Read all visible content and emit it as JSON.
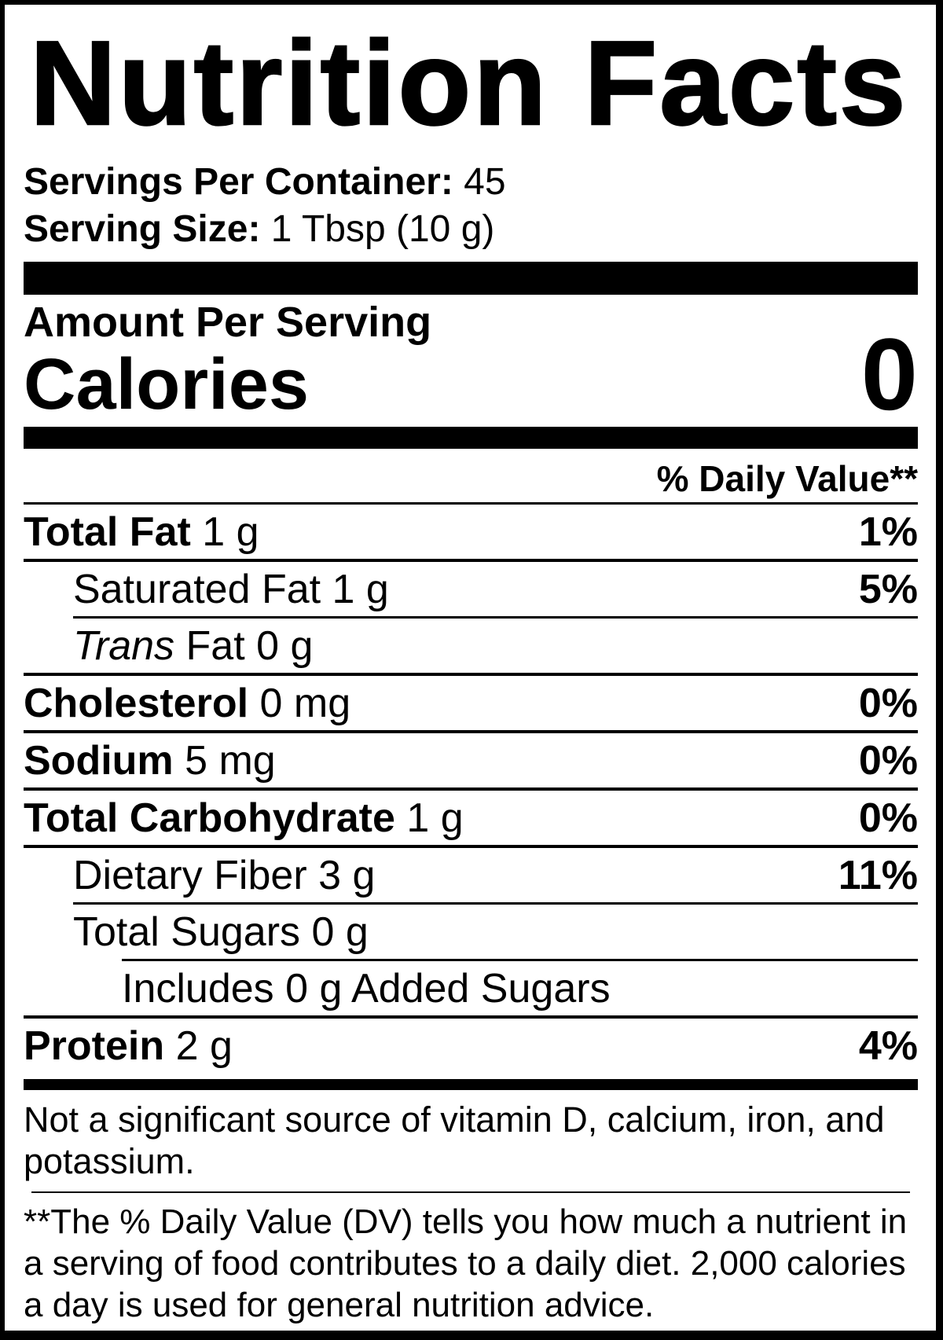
{
  "label": {
    "title": "Nutrition Facts",
    "servings": {
      "bold": "Servings Per Container:",
      "value": " 45"
    },
    "serving_size": {
      "bold": "Serving Size:",
      "value": " 1 Tbsp (10 g)"
    },
    "amount_per_serving": "Amount Per Serving",
    "calories": {
      "name": "Calories",
      "value": "0"
    },
    "daily_value_header": "% Daily Value**",
    "rows": [
      {
        "bold": "Total Fat",
        "italic": "",
        "rest": " 1 g",
        "percent": "1%"
      },
      {
        "bold": "",
        "italic": "",
        "rest": "Saturated Fat 1 g",
        "percent": "5%"
      },
      {
        "bold": "",
        "italic": "Trans",
        "rest": " Fat 0 g",
        "percent": ""
      },
      {
        "bold": "Cholesterol",
        "italic": "",
        "rest": " 0 mg",
        "percent": "0%"
      },
      {
        "bold": "Sodium",
        "italic": "",
        "rest": " 5 mg",
        "percent": "0%"
      },
      {
        "bold": "Total Carbohydrate",
        "italic": "",
        "rest": " 1 g",
        "percent": "0%"
      },
      {
        "bold": "",
        "italic": "",
        "rest": "Dietary Fiber 3 g",
        "percent": "11%"
      },
      {
        "bold": "",
        "italic": "",
        "rest": "Total Sugars 0 g",
        "percent": ""
      },
      {
        "bold": "",
        "italic": "",
        "rest": "Includes 0 g Added Sugars",
        "percent": ""
      },
      {
        "bold": "Protein",
        "italic": "",
        "rest": " 2 g",
        "percent": "4%"
      }
    ],
    "not_significant_note": "Not a significant source of vitamin D, calcium, iron, and potassium.",
    "footnote": "**The % Daily Value (DV) tells you how much a nutrient in a serving of food contributes to a daily diet. 2,000 calories a day is used for general nutrition advice.",
    "colors": {
      "ink": "#000000",
      "paper": "#ffffff"
    }
  }
}
